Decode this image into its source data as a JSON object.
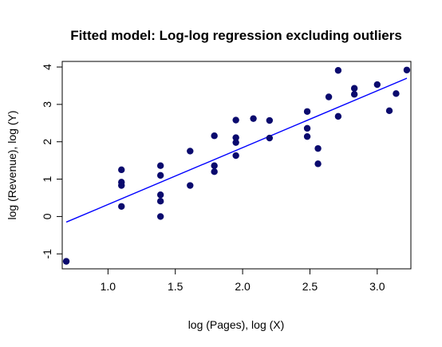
{
  "chart_data": {
    "type": "scatter",
    "title": "Fitted model: Log-log regression excluding outliers",
    "xlabel": "log (Pages), log (X)",
    "ylabel": "log (Revenue), log (Y)",
    "xlim": [
      0.66,
      3.25
    ],
    "ylim": [
      -1.4,
      4.15
    ],
    "x_ticks": [
      1.0,
      1.5,
      2.0,
      2.5,
      3.0
    ],
    "x_tick_labels": [
      "1.0",
      "1.5",
      "2.0",
      "2.5",
      "3.0"
    ],
    "y_ticks": [
      -1,
      0,
      1,
      2,
      3,
      4
    ],
    "y_tick_labels": [
      "-1",
      "0",
      "1",
      "2",
      "3",
      "4"
    ],
    "grid": false,
    "point_color": "#0a0a6e",
    "line_color": "#0000ff",
    "points": [
      {
        "x": 0.69,
        "y": -1.2
      },
      {
        "x": 1.1,
        "y": 1.25
      },
      {
        "x": 1.1,
        "y": 0.92
      },
      {
        "x": 1.1,
        "y": 0.83
      },
      {
        "x": 1.1,
        "y": 0.27
      },
      {
        "x": 1.39,
        "y": 1.36
      },
      {
        "x": 1.39,
        "y": 1.1
      },
      {
        "x": 1.39,
        "y": 0.58
      },
      {
        "x": 1.39,
        "y": 0.41
      },
      {
        "x": 1.39,
        "y": 0.0
      },
      {
        "x": 1.61,
        "y": 1.75
      },
      {
        "x": 1.61,
        "y": 0.83
      },
      {
        "x": 1.79,
        "y": 2.16
      },
      {
        "x": 1.79,
        "y": 1.36
      },
      {
        "x": 1.79,
        "y": 1.2
      },
      {
        "x": 1.95,
        "y": 2.58
      },
      {
        "x": 1.95,
        "y": 2.11
      },
      {
        "x": 1.95,
        "y": 1.98
      },
      {
        "x": 1.95,
        "y": 1.63
      },
      {
        "x": 2.08,
        "y": 2.62
      },
      {
        "x": 2.2,
        "y": 2.57
      },
      {
        "x": 2.2,
        "y": 2.1
      },
      {
        "x": 2.48,
        "y": 2.81
      },
      {
        "x": 2.48,
        "y": 2.36
      },
      {
        "x": 2.48,
        "y": 2.14
      },
      {
        "x": 2.56,
        "y": 1.82
      },
      {
        "x": 2.56,
        "y": 1.41
      },
      {
        "x": 2.64,
        "y": 3.2
      },
      {
        "x": 2.71,
        "y": 3.91
      },
      {
        "x": 2.71,
        "y": 2.68
      },
      {
        "x": 2.83,
        "y": 3.43
      },
      {
        "x": 2.83,
        "y": 3.27
      },
      {
        "x": 3.0,
        "y": 3.53
      },
      {
        "x": 3.09,
        "y": 2.83
      },
      {
        "x": 3.14,
        "y": 3.29
      },
      {
        "x": 3.22,
        "y": 3.92
      }
    ],
    "fit_line": {
      "x": [
        0.69,
        3.22
      ],
      "y": [
        -0.15,
        3.7
      ]
    }
  }
}
